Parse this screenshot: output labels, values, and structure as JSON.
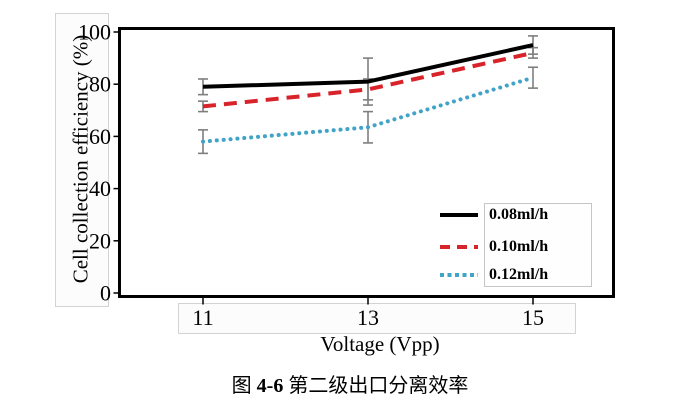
{
  "figure": {
    "caption_prefix": "图",
    "caption_number": "4-6",
    "caption_title": "第二级出口分离效率"
  },
  "chart_data": {
    "type": "line",
    "title": "",
    "xlabel": "Voltage (Vpp)",
    "ylabel": "Cell collection efficiency (%)",
    "x": [
      11,
      13,
      15
    ],
    "xtick_labels": [
      "11",
      "13",
      "15"
    ],
    "yticks": [
      0,
      20,
      40,
      60,
      80,
      100
    ],
    "ylim": [
      0,
      100
    ],
    "xlim": [
      10,
      16
    ],
    "grid": false,
    "legend_position": "lower-right",
    "error_bar_color": "#7f7f7f",
    "axis_color": "#000000",
    "series": [
      {
        "name": "0.08ml/h",
        "style": "solid",
        "color": "#000000",
        "values": [
          79,
          81,
          95
        ],
        "errors": [
          3,
          9,
          3.5
        ]
      },
      {
        "name": "0.10ml/h",
        "style": "dashed",
        "color": "#d8232a",
        "values": [
          71.5,
          78,
          92
        ],
        "errors": [
          2,
          4,
          2
        ]
      },
      {
        "name": "0.12ml/h",
        "style": "dotted",
        "color": "#41a3c8",
        "values": [
          58,
          63.5,
          82.5
        ],
        "errors": [
          4.5,
          6,
          4
        ]
      }
    ]
  }
}
